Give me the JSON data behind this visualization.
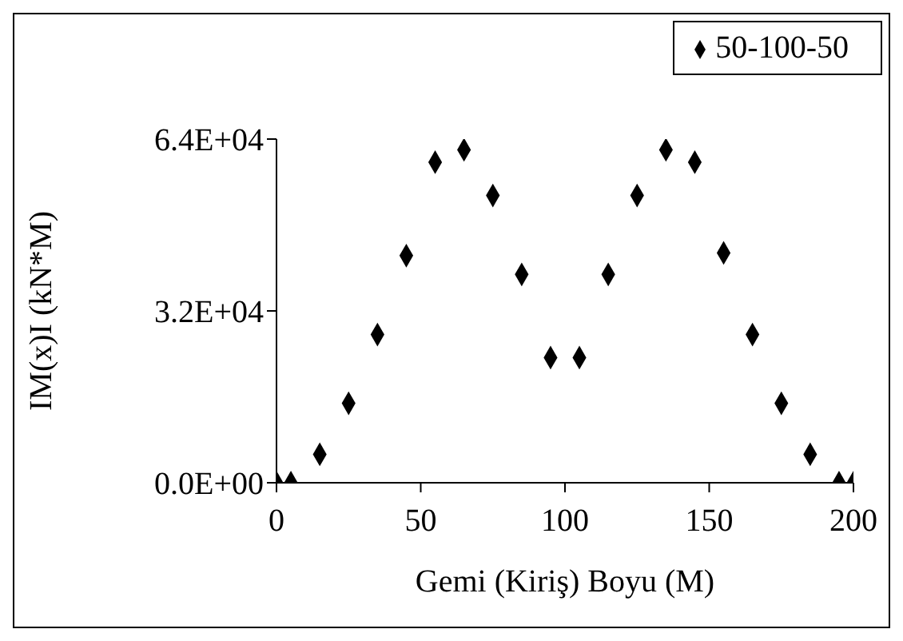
{
  "chart_data": {
    "type": "scatter",
    "xlabel": "Gemi (Kiriş) Boyu (M)",
    "ylabel": "IM(x)I (kN*M)",
    "x": [
      0,
      5,
      15,
      25,
      35,
      45,
      55,
      65,
      75,
      85,
      95,
      105,
      115,
      125,
      135,
      145,
      155,
      165,
      175,
      185,
      195,
      200
    ],
    "series": [
      {
        "name": "50-100-50",
        "color": "#000000",
        "values": [
          0,
          0,
          5300,
          14800,
          27600,
          42300,
          59700,
          62000,
          53500,
          38800,
          23300,
          23300,
          38800,
          53500,
          62000,
          59700,
          42800,
          27600,
          14800,
          5300,
          0,
          0
        ]
      }
    ],
    "xlim": [
      0,
      200
    ],
    "xticks": [
      0,
      50,
      100,
      150,
      200
    ],
    "ylim": [
      0,
      64000
    ],
    "yticks": [
      {
        "value": 0,
        "label": "0.0E+00"
      },
      {
        "value": 32000,
        "label": "3.2E+04"
      },
      {
        "value": 64000,
        "label": "6.4E+04"
      }
    ],
    "grid": false,
    "legend": "top right",
    "marker": "diamond"
  }
}
